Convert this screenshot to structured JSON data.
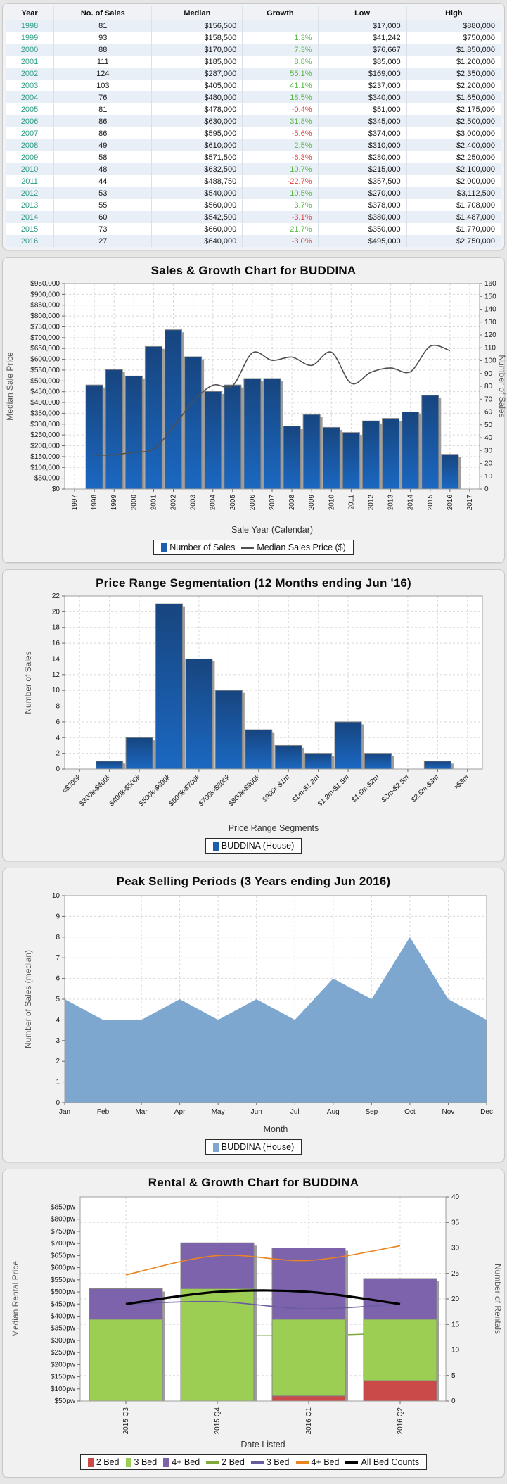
{
  "table": {
    "columns": [
      "Year",
      "No. of Sales",
      "Median",
      "Growth",
      "Low",
      "High"
    ],
    "rows": [
      {
        "year": "1998",
        "sales": "81",
        "median": "$156,500",
        "growth": "",
        "low": "$17,000",
        "high": "$880,000"
      },
      {
        "year": "1999",
        "sales": "93",
        "median": "$158,500",
        "growth": "1.3%",
        "low": "$41,242",
        "high": "$750,000"
      },
      {
        "year": "2000",
        "sales": "88",
        "median": "$170,000",
        "growth": "7.3%",
        "low": "$76,667",
        "high": "$1,850,000"
      },
      {
        "year": "2001",
        "sales": "111",
        "median": "$185,000",
        "growth": "8.8%",
        "low": "$85,000",
        "high": "$1,200,000"
      },
      {
        "year": "2002",
        "sales": "124",
        "median": "$287,000",
        "growth": "55.1%",
        "low": "$169,000",
        "high": "$2,350,000"
      },
      {
        "year": "2003",
        "sales": "103",
        "median": "$405,000",
        "growth": "41.1%",
        "low": "$237,000",
        "high": "$2,200,000"
      },
      {
        "year": "2004",
        "sales": "76",
        "median": "$480,000",
        "growth": "18.5%",
        "low": "$340,000",
        "high": "$1,650,000"
      },
      {
        "year": "2005",
        "sales": "81",
        "median": "$478,000",
        "growth": "-0.4%",
        "low": "$51,000",
        "high": "$2,175,000"
      },
      {
        "year": "2006",
        "sales": "86",
        "median": "$630,000",
        "growth": "31.8%",
        "low": "$345,000",
        "high": "$2,500,000"
      },
      {
        "year": "2007",
        "sales": "86",
        "median": "$595,000",
        "growth": "-5.6%",
        "low": "$374,000",
        "high": "$3,000,000"
      },
      {
        "year": "2008",
        "sales": "49",
        "median": "$610,000",
        "growth": "2.5%",
        "low": "$310,000",
        "high": "$2,400,000"
      },
      {
        "year": "2009",
        "sales": "58",
        "median": "$571,500",
        "growth": "-6.3%",
        "low": "$280,000",
        "high": "$2,250,000"
      },
      {
        "year": "2010",
        "sales": "48",
        "median": "$632,500",
        "growth": "10.7%",
        "low": "$215,000",
        "high": "$2,100,000"
      },
      {
        "year": "2011",
        "sales": "44",
        "median": "$488,750",
        "growth": "-22.7%",
        "low": "$357,500",
        "high": "$2,000,000"
      },
      {
        "year": "2012",
        "sales": "53",
        "median": "$540,000",
        "growth": "10.5%",
        "low": "$270,000",
        "high": "$3,112,500"
      },
      {
        "year": "2013",
        "sales": "55",
        "median": "$560,000",
        "growth": "3.7%",
        "low": "$378,000",
        "high": "$1,708,000"
      },
      {
        "year": "2014",
        "sales": "60",
        "median": "$542,500",
        "growth": "-3.1%",
        "low": "$380,000",
        "high": "$1,487,000"
      },
      {
        "year": "2015",
        "sales": "73",
        "median": "$660,000",
        "growth": "21.7%",
        "low": "$350,000",
        "high": "$1,770,000"
      },
      {
        "year": "2016",
        "sales": "27",
        "median": "$640,000",
        "growth": "-3.0%",
        "low": "$495,000",
        "high": "$2,750,000"
      }
    ]
  },
  "colors": {
    "bar_top": "#17457f",
    "bar_bottom": "#1b68c2",
    "bar_stroke": "#848484",
    "bar_shadow": "#9e9e9e",
    "price_line": "#4f4f4f",
    "area_fill": "#7ea7cf",
    "bed2_bar": "#c94a48",
    "bed3_bar": "#9cce54",
    "bed4_bar": "#7d63ab",
    "bed2_line": "#7fa83d",
    "bed3_line": "#6a5b9e",
    "bed4_line": "#e98420",
    "all_bed_line": "#000000",
    "grid": "#d8d8d8",
    "plot_border": "#9e9e9e",
    "tick_text": "#1a1a1a",
    "axis_title": "#555555",
    "year_text": "#2e9c85",
    "growth_pos": "#56b845",
    "growth_neg": "#e83c38"
  },
  "chart_data": [
    {
      "id": "sales_growth",
      "type": "bar",
      "title": "Sales & Growth Chart for BUDDINA",
      "categories": [
        "1997",
        "1998",
        "1999",
        "2000",
        "2001",
        "2002",
        "2003",
        "2004",
        "2005",
        "2006",
        "2007",
        "2008",
        "2009",
        "2010",
        "2011",
        "2012",
        "2013",
        "2014",
        "2015",
        "2016",
        "2017"
      ],
      "series": [
        {
          "name": "Number of Sales",
          "type": "bar",
          "axis": "right",
          "values": [
            null,
            81,
            93,
            88,
            111,
            124,
            103,
            76,
            81,
            86,
            86,
            49,
            58,
            48,
            44,
            53,
            55,
            60,
            73,
            27,
            null
          ]
        },
        {
          "name": "Median Sales Price ($)",
          "type": "line",
          "axis": "left",
          "values": [
            null,
            156500,
            158500,
            170000,
            185000,
            287000,
            405000,
            480000,
            478000,
            630000,
            595000,
            610000,
            571500,
            632500,
            488750,
            540000,
            560000,
            542500,
            660000,
            640000,
            null
          ]
        }
      ],
      "xlabel": "Sale Year (Calendar)",
      "ylabel_left": "Median Sale Price",
      "ylabel_right": "Number of Sales",
      "ylim_left": [
        0,
        950000
      ],
      "ytick_left": 50000,
      "ylim_right": [
        0,
        160
      ],
      "ytick_right": 10,
      "grid": true,
      "legend_position": "bottom",
      "legend": [
        {
          "label": "Number of Sales",
          "swatch": "bar-blue"
        },
        {
          "label": "Median Sales Price ($)",
          "swatch": "line-gray"
        }
      ]
    },
    {
      "id": "price_range",
      "type": "bar",
      "title": "Price Range Segmentation (12 Months ending Jun '16)",
      "categories": [
        "<$300k",
        "$300k-$400k",
        "$400k-$500k",
        "$500k-$600k",
        "$600k-$700k",
        "$700k-$800k",
        "$800k-$900k",
        "$900k-$1m",
        "$1m-$1.2m",
        "$1.2m-$1.5m",
        "$1.5m-$2m",
        "$2m-$2.5m",
        "$2.5m-$3m",
        ">$3m"
      ],
      "values": [
        0,
        1,
        4,
        21,
        14,
        10,
        5,
        3,
        2,
        6,
        2,
        0,
        1,
        0
      ],
      "xlabel": "Price Range Segments",
      "ylabel": "Number of Sales",
      "ylim": [
        0,
        22
      ],
      "ytick": 2,
      "grid": true,
      "legend_position": "bottom",
      "legend": [
        {
          "label": "BUDDINA (House)",
          "swatch": "bar-blue"
        }
      ]
    },
    {
      "id": "peak_selling",
      "type": "area",
      "title": "Peak Selling Periods (3 Years ending Jun 2016)",
      "categories": [
        "Jan",
        "Feb",
        "Mar",
        "Apr",
        "May",
        "Jun",
        "Jul",
        "Aug",
        "Sep",
        "Oct",
        "Nov",
        "Dec"
      ],
      "values": [
        5,
        4,
        4,
        5,
        4,
        5,
        4,
        6,
        5,
        8,
        5,
        4
      ],
      "xlabel": "Month",
      "ylabel": "Number of Sales (median)",
      "ylim": [
        0,
        10
      ],
      "ytick": 1,
      "grid": true,
      "legend_position": "bottom",
      "legend": [
        {
          "label": "BUDDINA (House)",
          "swatch": "area-blue"
        }
      ]
    },
    {
      "id": "rental_growth",
      "type": "bar",
      "title": "Rental & Growth Chart for BUDDINA",
      "categories": [
        "2015 Q3",
        "2015 Q4",
        "2016 Q1",
        "2016 Q2"
      ],
      "series": [
        {
          "name": "2 Bed",
          "type": "stacked-bar",
          "axis": "right",
          "color_key": "bed2_bar",
          "values": [
            0,
            0,
            1,
            4
          ]
        },
        {
          "name": "3 Bed",
          "type": "stacked-bar",
          "axis": "right",
          "color_key": "bed3_bar",
          "values": [
            16,
            22,
            15,
            12
          ]
        },
        {
          "name": "4+ Bed",
          "type": "stacked-bar",
          "axis": "right",
          "color_key": "bed4_bar",
          "values": [
            6,
            9,
            14,
            8
          ]
        },
        {
          "name": "2 Bed",
          "type": "line",
          "axis": "left",
          "color_key": "bed2_line",
          "under_bars": true,
          "values": [
            null,
            320,
            320,
            330
          ]
        },
        {
          "name": "3 Bed",
          "type": "line",
          "axis": "left",
          "color_key": "bed3_line",
          "values": [
            450,
            460,
            430,
            450
          ]
        },
        {
          "name": "4+ Bed",
          "type": "line",
          "axis": "left",
          "color_key": "bed4_line",
          "values": [
            570,
            650,
            630,
            690
          ]
        },
        {
          "name": "All Bed Counts",
          "type": "line",
          "axis": "left",
          "color_key": "all_bed_line",
          "thick": true,
          "values": [
            450,
            500,
            500,
            450
          ]
        }
      ],
      "xlabel": "Date Listed",
      "ylabel_left": "Median Rental Price",
      "ylabel_right": "Number of Rentals",
      "ylim_left": [
        50,
        850
      ],
      "ytick_left": 50,
      "left_unit": "pw",
      "left_max_at_right": 38,
      "ylim_right": [
        0,
        40
      ],
      "ytick_right": 5,
      "grid": true,
      "legend_position": "bottom",
      "legend": [
        {
          "label": "2 Bed",
          "swatch": "bar-red"
        },
        {
          "label": "3 Bed",
          "swatch": "bar-green"
        },
        {
          "label": "4+ Bed",
          "swatch": "bar-purple"
        },
        {
          "label": "2 Bed",
          "swatch": "line-green"
        },
        {
          "label": "3 Bed",
          "swatch": "line-purple"
        },
        {
          "label": "4+ Bed",
          "swatch": "line-orange"
        },
        {
          "label": "All Bed Counts",
          "swatch": "line-black"
        }
      ]
    }
  ]
}
